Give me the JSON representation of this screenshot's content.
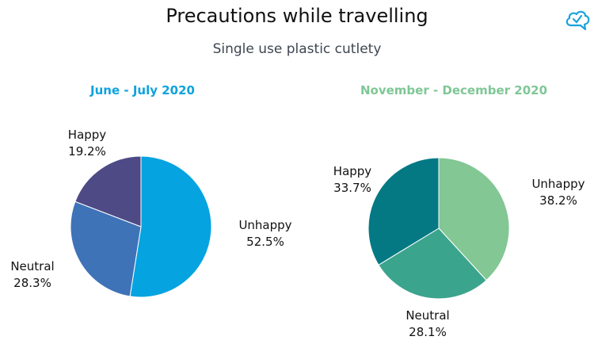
{
  "title": "Precautions while travelling",
  "subtitle": "Single use plastic cutlety",
  "chart_data": [
    {
      "type": "pie",
      "title": "June - July 2020",
      "title_color": "#0ea3dd",
      "slices": [
        {
          "label": "Unhappy",
          "value": 52.5,
          "display": "52.5%",
          "color": "#05a3e0"
        },
        {
          "label": "Neutral",
          "value": 28.3,
          "display": "28.3%",
          "color": "#3f73b8"
        },
        {
          "label": "Happy",
          "value": 19.2,
          "display": "19.2%",
          "color": "#4e4a86"
        }
      ]
    },
    {
      "type": "pie",
      "title": "November - December 2020",
      "title_color": "#7fc796",
      "slices": [
        {
          "label": "Unhappy",
          "value": 38.2,
          "display": "38.2%",
          "color": "#82c794"
        },
        {
          "label": "Neutral",
          "value": 28.1,
          "display": "28.1%",
          "color": "#3ba48c"
        },
        {
          "label": "Happy",
          "value": 33.7,
          "display": "33.7%",
          "color": "#047984"
        }
      ]
    }
  ],
  "logo": {
    "icon": "cloud-check-icon",
    "color": "#1aa3dc"
  }
}
